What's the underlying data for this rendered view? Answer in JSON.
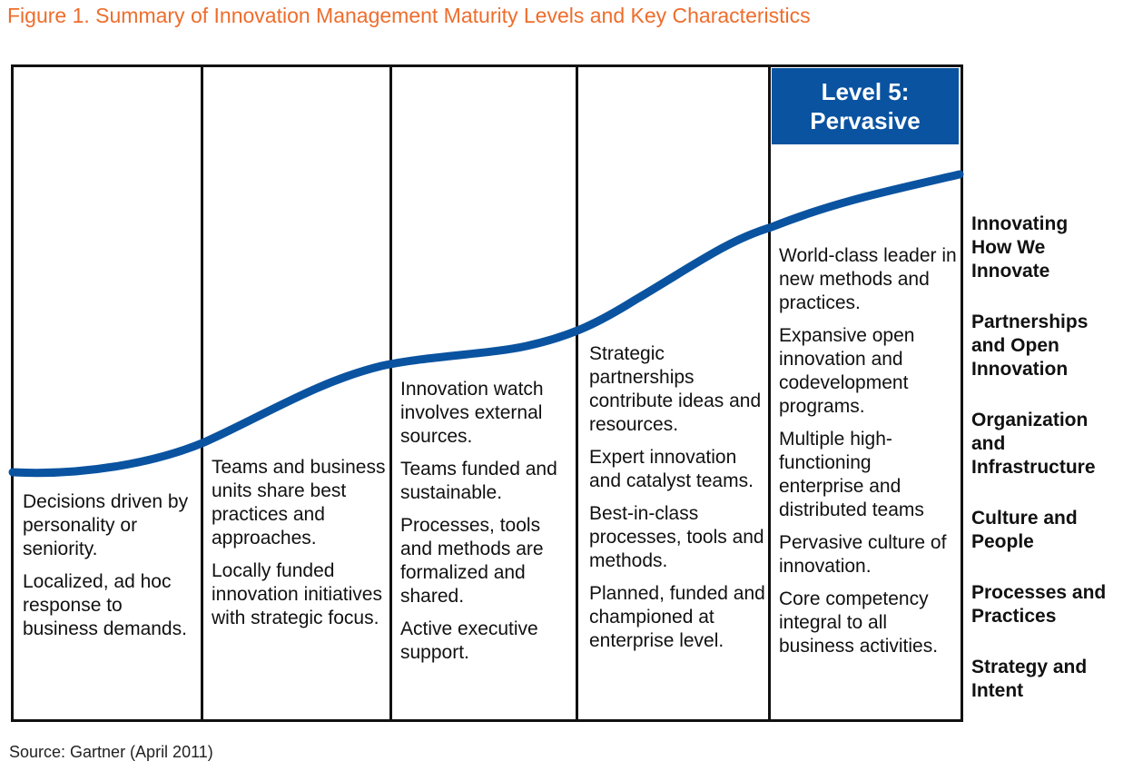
{
  "title": "Figure 1. Summary of Innovation Management Maturity Levels and Key Characteristics",
  "badge": {
    "line1": "Level 5:",
    "line2": "Pervasive"
  },
  "columns": [
    {
      "bullets": [
        "Decisions driven by personality or seniority.",
        "Localized, ad hoc response to business demands."
      ]
    },
    {
      "bullets": [
        "Teams and business units share best practices and approaches.",
        "Locally funded innovation initiatives with strategic focus."
      ]
    },
    {
      "bullets": [
        "Innovation watch involves external sources.",
        "Teams funded and sustainable.",
        "Processes, tools and methods are formalized and shared.",
        "Active executive support."
      ]
    },
    {
      "bullets": [
        "Strategic partnerships contribute ideas and resources.",
        "Expert innovation and catalyst teams.",
        "Best-in-class processes, tools and methods.",
        "Planned, funded and championed at enterprise level."
      ]
    },
    {
      "bullets": [
        "World-class leader in new methods and practices.",
        "Expansive open innovation and codevelopment programs.",
        "Multiple high-functioning enterprise and distributed teams",
        "Pervasive culture of innovation.",
        "Core competency integral to all business activities."
      ]
    }
  ],
  "dimensions": [
    "Innovating How We Innovate",
    "Partnerships and Open Innovation",
    "Organization and Infrastructure",
    "Culture and People",
    "Processes and Practices",
    "Strategy and Intent"
  ],
  "source": "Source: Gartner (April 2011)",
  "colors": {
    "title": "#ee6d2c",
    "accent": "#0a53a0",
    "frame": "#111111"
  }
}
